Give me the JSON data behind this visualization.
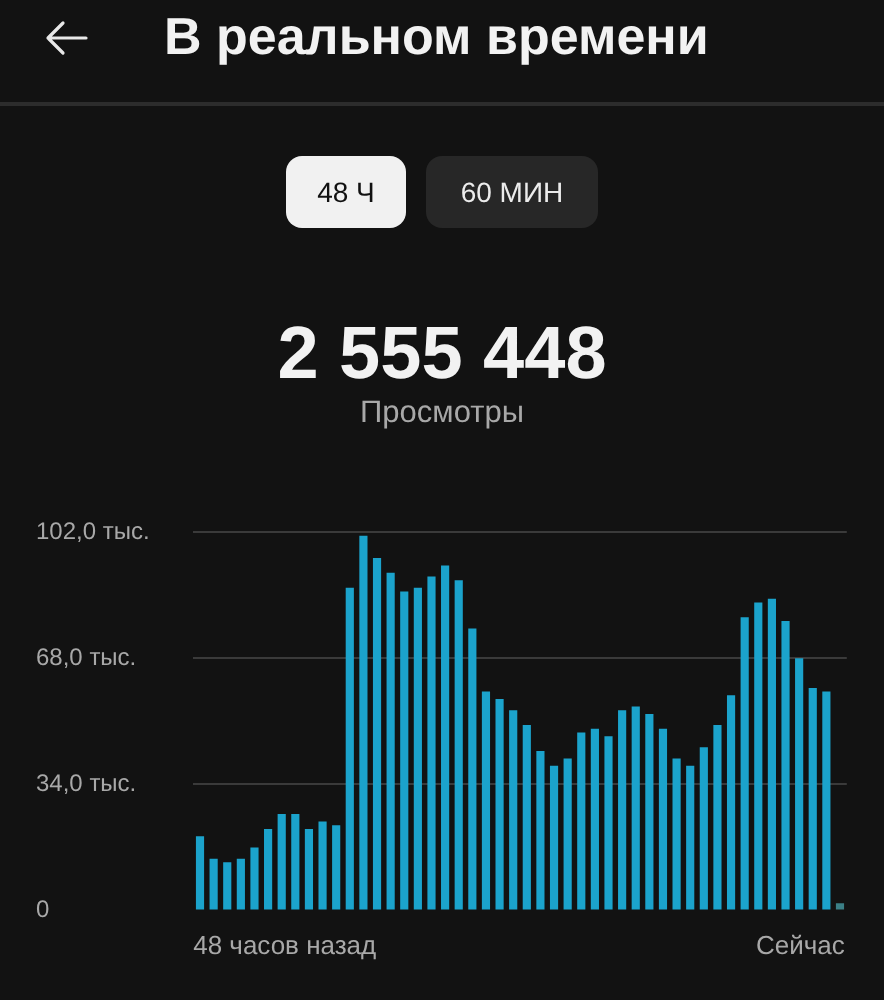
{
  "chart_data": {
    "type": "bar",
    "title": "В реальном времени",
    "annotations": [
      "48 Ч",
      "60 МИН",
      "2 555 448",
      "Просмотры",
      "48 часов назад",
      "Сейчас"
    ],
    "categories": [
      null,
      null,
      null,
      null,
      null,
      null,
      null,
      null,
      null,
      null,
      null,
      null,
      null,
      null,
      null,
      null,
      null,
      null,
      null,
      null,
      null,
      null,
      null,
      null,
      null,
      null,
      null,
      null,
      null,
      null,
      null,
      null,
      null,
      null,
      null,
      null,
      null,
      null,
      null,
      null,
      null,
      null,
      null,
      null,
      null,
      null,
      null,
      null
    ],
    "values": [
      20,
      14,
      13,
      14,
      17,
      22,
      26,
      26,
      22,
      24,
      23,
      87,
      101,
      95,
      91,
      86,
      87,
      90,
      93,
      89,
      76,
      59,
      57,
      54,
      50,
      43,
      39,
      41,
      48,
      49,
      47,
      54,
      55,
      53,
      49,
      41,
      39,
      44,
      50,
      58,
      79,
      83,
      84,
      78,
      68,
      60,
      59,
      2
    ],
    "colors": [
      "#1ba3cc",
      "#1ba3cc",
      "#1ba3cc",
      "#1ba3cc",
      "#1ba3cc",
      "#1ba3cc",
      "#1ba3cc",
      "#1ba3cc",
      "#1ba3cc",
      "#1ba3cc",
      "#1ba3cc",
      "#1ba3cc",
      "#1ba3cc",
      "#1ba3cc",
      "#1ba3cc",
      "#1ba3cc",
      "#1ba3cc",
      "#1ba3cc",
      "#1ba3cc",
      "#1ba3cc",
      "#1ba3cc",
      "#1ba3cc",
      "#1ba3cc",
      "#1ba3cc",
      "#1ba3cc",
      "#1ba3cc",
      "#1ba3cc",
      "#1ba3cc",
      "#1ba3cc",
      "#1ba3cc",
      "#1ba3cc",
      "#1ba3cc",
      "#1ba3cc",
      "#1ba3cc",
      "#1ba3cc",
      "#1ba3cc",
      "#1ba3cc",
      "#1ba3cc",
      "#1ba3cc",
      "#1ba3cc",
      "#1ba3cc",
      "#1ba3cc",
      "#1ba3cc",
      "#1ba3cc",
      "#1ba3cc",
      "#1ba3cc",
      "#1ba3cc",
      "#3b7f86"
    ],
    "ylim": [
      0,
      102
    ],
    "yticks": [
      0,
      {
        "value": 34,
        "label": "34,0 тыс."
      },
      {
        "value": 68,
        "label": "68,0 тыс."
      },
      {
        "value": 102,
        "label": "102,0 тыс."
      }
    ],
    "grid": "y"
  }
}
